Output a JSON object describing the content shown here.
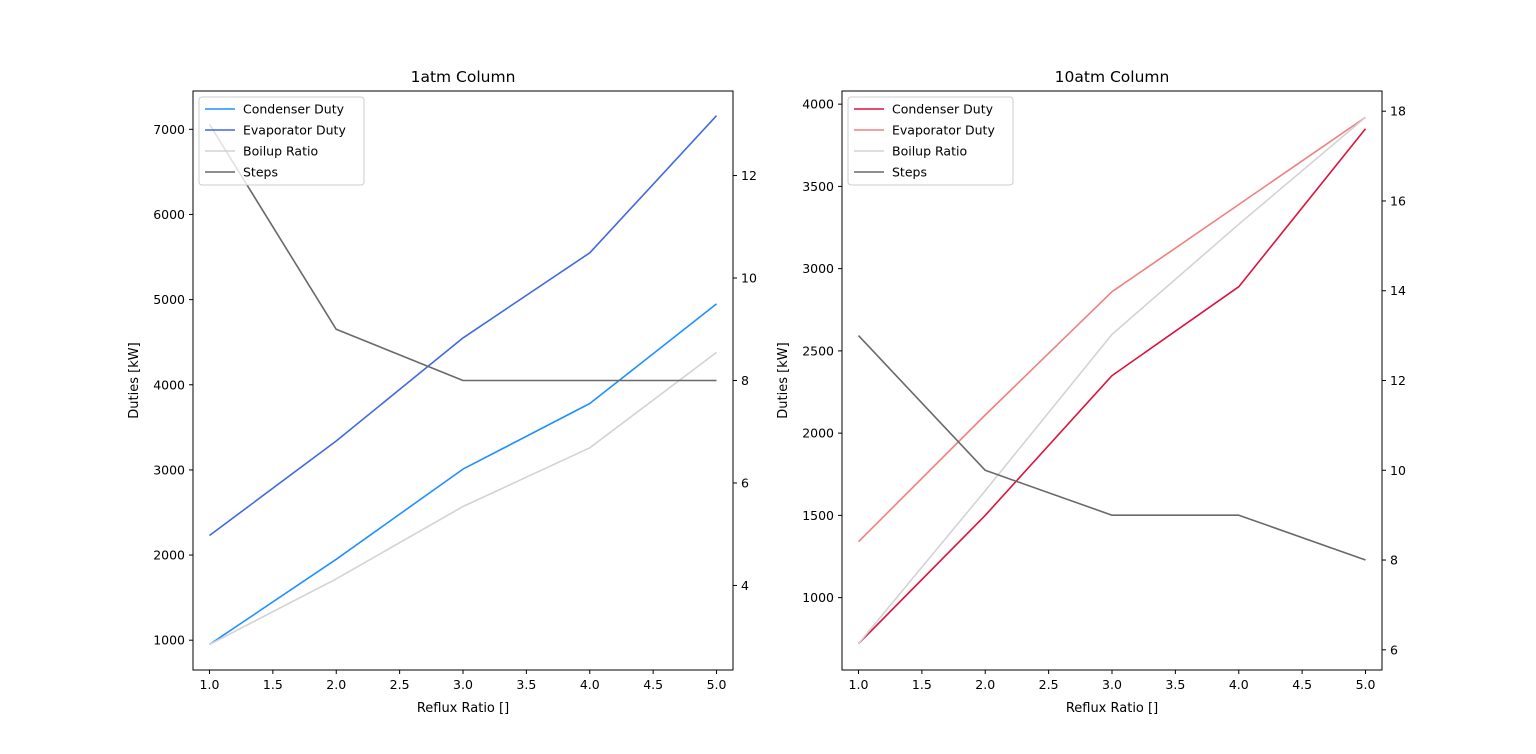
{
  "chart_data": [
    {
      "type": "line",
      "title": "1atm Column",
      "xlabel": "Reflux Ratio []",
      "ylabel": "Duties [kW]",
      "ylabel_right": "",
      "x": [
        1.0,
        2.0,
        3.0,
        4.0,
        5.0
      ],
      "xlim": [
        0.87,
        5.13
      ],
      "ylim": [
        650,
        7450
      ],
      "ylim_right": [
        2.35,
        13.65
      ],
      "xticks": [
        "1.0",
        "1.5",
        "2.0",
        "2.5",
        "3.0",
        "3.5",
        "4.0",
        "4.5",
        "5.0"
      ],
      "xtick_values": [
        1.0,
        1.5,
        2.0,
        2.5,
        3.0,
        3.5,
        4.0,
        4.5,
        5.0
      ],
      "yticks": [
        "1000",
        "2000",
        "3000",
        "4000",
        "5000",
        "6000",
        "7000"
      ],
      "ytick_values": [
        1000,
        2000,
        3000,
        4000,
        5000,
        6000,
        7000
      ],
      "yticks_right": [
        "4",
        "6",
        "8",
        "10",
        "12"
      ],
      "ytick_right_values": [
        4,
        6,
        8,
        10,
        12
      ],
      "grid": false,
      "legend": "top-left",
      "series": [
        {
          "name": "Condenser Duty",
          "color": "#1e90ff",
          "axis": "left",
          "values": [
            950,
            1950,
            3010,
            3780,
            4950
          ]
        },
        {
          "name": "Evaporator Duty",
          "color": "#4169e1",
          "axis": "left",
          "values": [
            2230,
            3340,
            4550,
            5550,
            7160
          ]
        },
        {
          "name": "Boilup Ratio",
          "color": "#d3d3d3",
          "axis": "left",
          "values": [
            950,
            1720,
            2570,
            3260,
            4380
          ]
        },
        {
          "name": "Steps",
          "color": "#696969",
          "axis": "right",
          "values": [
            13,
            9,
            8,
            8,
            8
          ]
        }
      ]
    },
    {
      "type": "line",
      "title": "10atm Column",
      "xlabel": "Reflux Ratio []",
      "ylabel": "Duties [kW]",
      "ylabel_right": "",
      "x": [
        1.0,
        2.0,
        3.0,
        4.0,
        5.0
      ],
      "xlim": [
        0.87,
        5.13
      ],
      "ylim": [
        560,
        4080
      ],
      "ylim_right": [
        5.55,
        18.45
      ],
      "xticks": [
        "1.0",
        "1.5",
        "2.0",
        "2.5",
        "3.0",
        "3.5",
        "4.0",
        "4.5",
        "5.0"
      ],
      "xtick_values": [
        1.0,
        1.5,
        2.0,
        2.5,
        3.0,
        3.5,
        4.0,
        4.5,
        5.0
      ],
      "yticks": [
        "1000",
        "1500",
        "2000",
        "2500",
        "3000",
        "3500",
        "4000"
      ],
      "ytick_values": [
        1000,
        1500,
        2000,
        2500,
        3000,
        3500,
        4000
      ],
      "yticks_right": [
        "6",
        "8",
        "10",
        "12",
        "14",
        "16",
        "18"
      ],
      "ytick_right_values": [
        6,
        8,
        10,
        12,
        14,
        16,
        18
      ],
      "grid": false,
      "legend": "top-left",
      "series": [
        {
          "name": "Condenser Duty",
          "color": "#dc143c",
          "axis": "left",
          "values": [
            720,
            1500,
            2350,
            2890,
            3850
          ]
        },
        {
          "name": "Evaporator Duty",
          "color": "#f08080",
          "axis": "left",
          "values": [
            1340,
            2110,
            2860,
            3390,
            3920
          ]
        },
        {
          "name": "Boilup Ratio",
          "color": "#d3d3d3",
          "axis": "left",
          "values": [
            720,
            1650,
            2600,
            3270,
            3920
          ]
        },
        {
          "name": "Steps",
          "color": "#696969",
          "axis": "right",
          "values": [
            13,
            10,
            9,
            9,
            8
          ]
        }
      ]
    }
  ]
}
